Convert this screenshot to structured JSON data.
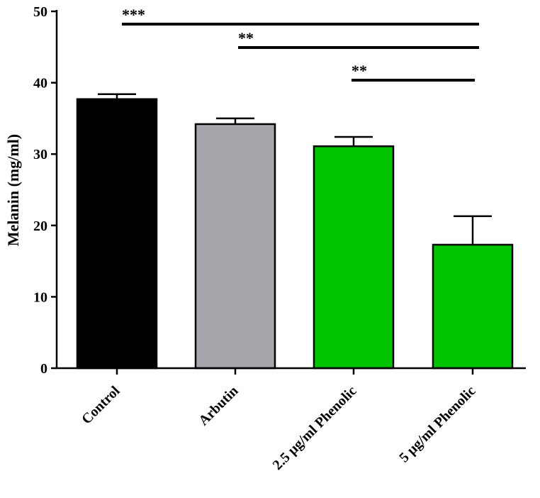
{
  "chart_data": {
    "type": "bar",
    "title": "",
    "xlabel": "",
    "ylabel": "Melanin (mg/ml)",
    "ylim": [
      0,
      50
    ],
    "yticks": [
      0,
      10,
      20,
      30,
      40,
      50
    ],
    "categories": [
      "Control",
      "Arbutin",
      "2.5 μg/ml Phenolic",
      "5 μg/ml Phenolic"
    ],
    "values": [
      37.7,
      34.2,
      31.1,
      17.3
    ],
    "errors": [
      0.7,
      0.8,
      1.3,
      4.0
    ],
    "colors": [
      "#000000",
      "#a6a5ab",
      "#00c400",
      "#00c400"
    ],
    "significance": [
      {
        "from": "Control",
        "to": "5 μg/ml Phenolic",
        "label": "***"
      },
      {
        "from": "Arbutin",
        "to": "5 μg/ml Phenolic",
        "label": "**"
      },
      {
        "from": "2.5 μg/ml Phenolic",
        "to": "5 μg/ml Phenolic",
        "label": "**"
      }
    ]
  }
}
